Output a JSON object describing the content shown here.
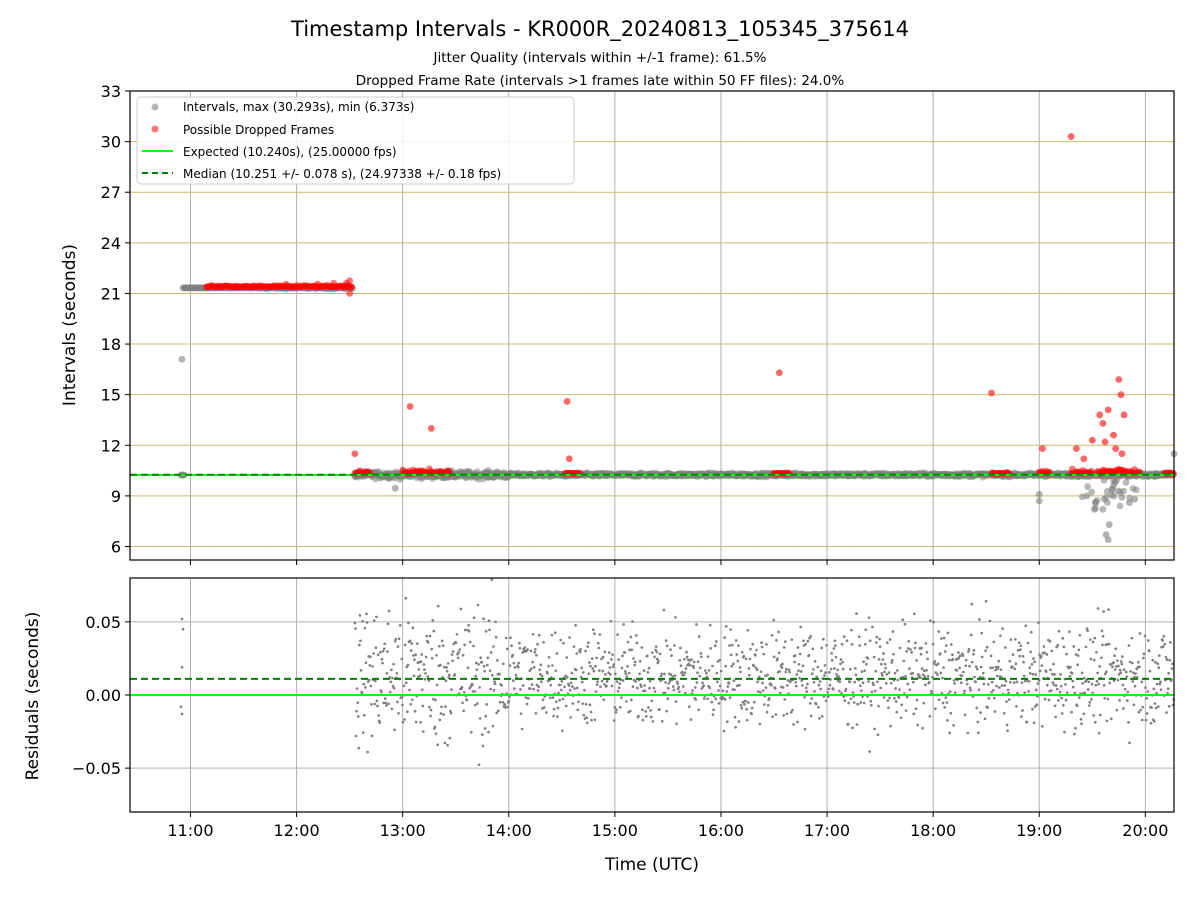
{
  "figure": {
    "title": "Timestamp Intervals - KR000R_20240813_105345_375614",
    "subtitle1": "Jitter Quality (intervals within +/-1 frame): 61.5%",
    "subtitle2": "Dropped Frame Rate (intervals >1 frames late within 50 FF files): 24.0%"
  },
  "colors": {
    "intervals": "#808080",
    "dropped": "#ff0000",
    "expected": "#00ff00",
    "median": "#008000",
    "hgrid_top": "#d2b96a",
    "grid": "#b0b0b0"
  },
  "chart_data": [
    {
      "type": "scatter",
      "panel": "top",
      "xlabel": "",
      "ylabel": "Intervals (seconds)",
      "x_unit": "hours UTC",
      "xlim": [
        10.43,
        20.27
      ],
      "ylim": [
        5.2,
        33
      ],
      "yticks": [
        6,
        9,
        12,
        15,
        18,
        21,
        24,
        27,
        30,
        33
      ],
      "grid": true,
      "legend_position": "upper-left",
      "legend": [
        "Intervals, max (30.293s), min (6.373s)",
        "Possible Dropped Frames",
        "Expected (10.240s), (25.00000 fps)",
        "Median (10.251 +/- 0.078 s), (24.97338 +/- 0.18 fps)"
      ],
      "expected_line": 10.24,
      "median_line": 10.251,
      "series": [
        {
          "name": "Intervals, max (30.293s), min (6.373s)",
          "description": "~2100 gray points: ~21.33 s from 10:55 to 12:32 (plus one at 17.1 s and a few at 10.24 s near 10:55); ~10.25 s scatter (±0.5 s) from 12:32 to 20:17 with a dip cluster down to 6.4 s around 19:30–19:55",
          "x": [
            10.92,
            10.93,
            12.93,
            19.0,
            19.0,
            19.45,
            19.52,
            19.6,
            19.63,
            19.65,
            19.66,
            19.85,
            19.9,
            20.27
          ],
          "y": [
            17.1,
            10.24,
            9.45,
            9.1,
            8.7,
            9.0,
            8.2,
            8.2,
            6.7,
            6.4,
            7.3,
            8.6,
            8.8,
            11.5
          ]
        },
        {
          "name": "Possible Dropped Frames",
          "description": "red points: dense band at ~21.4 s from 11:10 to 12:32; clusters at ~10.3–10.7 s; outliers listed",
          "x": [
            12.55,
            13.07,
            13.27,
            14.55,
            14.57,
            16.55,
            18.55,
            19.03,
            19.3,
            19.35,
            19.42,
            19.5,
            19.57,
            19.6,
            19.62,
            19.65,
            19.7,
            19.72,
            19.75,
            19.77,
            19.78,
            19.8
          ],
          "y": [
            11.5,
            14.3,
            13.0,
            14.6,
            11.2,
            16.3,
            15.1,
            11.8,
            30.3,
            11.8,
            11.2,
            12.3,
            13.8,
            13.3,
            12.2,
            14.1,
            12.6,
            11.8,
            15.9,
            15.0,
            11.5,
            13.8
          ]
        }
      ]
    },
    {
      "type": "scatter",
      "panel": "bottom",
      "xlabel": "Time (UTC)",
      "ylabel": "Residuals (seconds)",
      "xlim": [
        10.43,
        20.27
      ],
      "ylim": [
        -0.08,
        0.08
      ],
      "yticks": [
        -0.05,
        0.0,
        0.05
      ],
      "ytick_labels": [
        "−0.05",
        "0.00",
        "0.05"
      ],
      "xticks": [
        11,
        12,
        13,
        14,
        15,
        16,
        17,
        18,
        19,
        20
      ],
      "xtick_labels": [
        "11:00",
        "12:00",
        "13:00",
        "14:00",
        "15:00",
        "16:00",
        "17:00",
        "18:00",
        "19:00",
        "20:00"
      ],
      "grid": true,
      "expected_line": 0.0,
      "median_line": 0.011,
      "series": [
        {
          "name": "",
          "description": "~1500 small gray points: a few near 10:55 (0.05, 0.045, 0.02, -0.01, -0.015); dense scatter from 12:30 to 20:17, mostly between -0.05 and +0.08, centred near +0.012",
          "x": [
            10.92,
            10.93,
            10.92,
            10.91,
            10.92
          ],
          "y": [
            0.052,
            0.045,
            0.019,
            -0.008,
            -0.013
          ]
        }
      ]
    }
  ]
}
